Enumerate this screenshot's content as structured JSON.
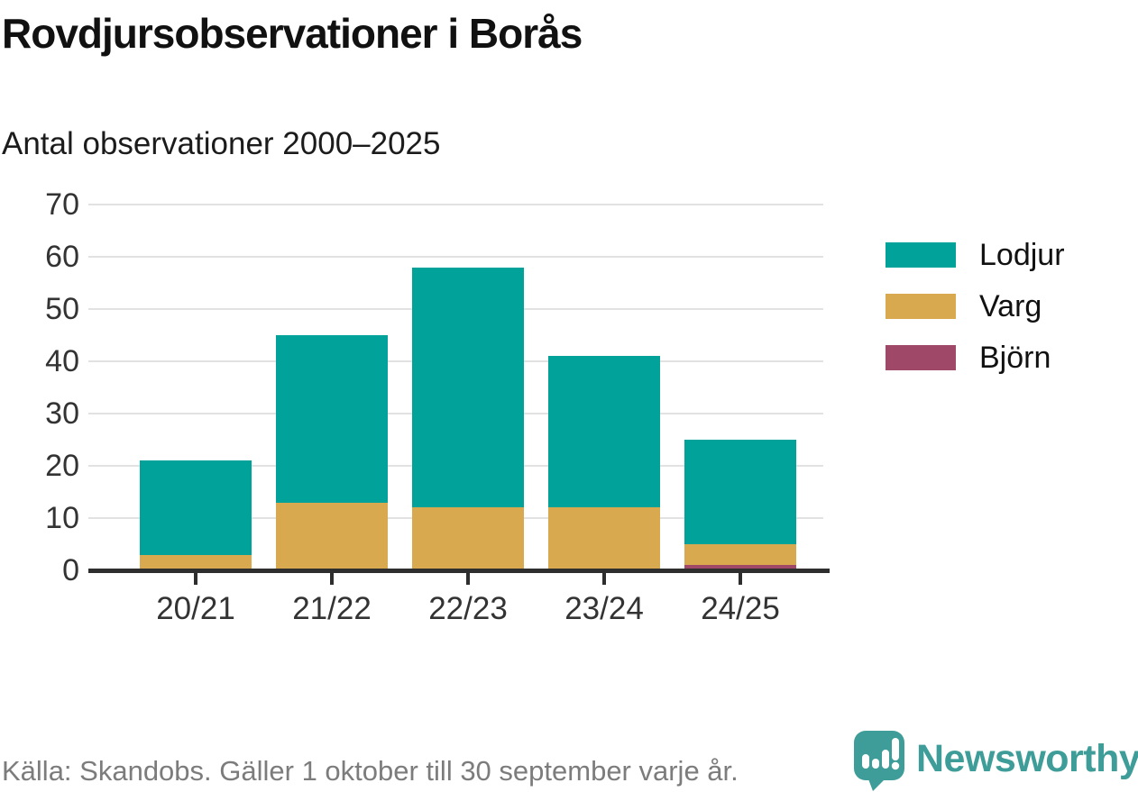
{
  "title": "Rovdjursobservationer i Borås",
  "subtitle": "Antal observationer 2000–2025",
  "footer": {
    "source": "Källa: Skandobs. Gäller 1 oktober till 30 september varje år."
  },
  "branding": {
    "name": "Newsworthy",
    "logo_icon": "newsworthy-speech-bubble-bar-chart-icon",
    "color": "#3E9D98"
  },
  "colors": {
    "lodjur": "#00A29A",
    "varg": "#D9A950",
    "bjorn": "#A04868",
    "gridline": "#e2e2e2",
    "axis": "#2e2e2e",
    "axis_text": "#333333",
    "source_text": "#7c7c7c"
  },
  "chart_data": {
    "type": "bar",
    "stacked": true,
    "title": "Rovdjursobservationer i Borås",
    "subtitle": "Antal observationer 2000–2025",
    "xlabel": "",
    "ylabel": "Antal observationer",
    "categories": [
      "20/21",
      "21/22",
      "22/23",
      "23/24",
      "24/25"
    ],
    "series": [
      {
        "name": "Lodjur",
        "color": "#00A29A",
        "values": [
          18,
          32,
          46,
          29,
          20
        ]
      },
      {
        "name": "Varg",
        "color": "#D9A950",
        "values": [
          3,
          13,
          12,
          12,
          4
        ]
      },
      {
        "name": "Björn",
        "color": "#A04868",
        "values": [
          0,
          0,
          0,
          0,
          1
        ]
      }
    ],
    "totals": [
      21,
      45,
      58,
      41,
      25
    ],
    "ylim": [
      0,
      70
    ],
    "yticks": [
      0,
      10,
      20,
      30,
      40,
      50,
      60,
      70
    ],
    "grid": true,
    "legend_position": "right"
  }
}
